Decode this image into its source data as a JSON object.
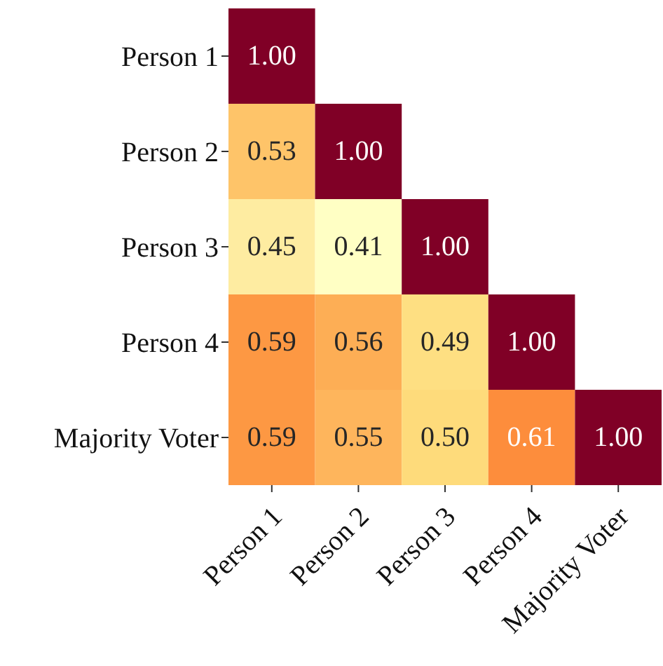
{
  "chart_data": {
    "type": "heatmap",
    "categories": [
      "Person 1",
      "Person 2",
      "Person 3",
      "Person 4",
      "Majority Voter"
    ],
    "y_categories": [
      "Person 1",
      "Person 2",
      "Person 3",
      "Person 4",
      "Majority Voter"
    ],
    "cells": [
      [
        1.0,
        null,
        null,
        null,
        null
      ],
      [
        0.53,
        1.0,
        null,
        null,
        null
      ],
      [
        0.45,
        0.41,
        1.0,
        null,
        null
      ],
      [
        0.59,
        0.56,
        0.49,
        1.0,
        null
      ],
      [
        0.59,
        0.55,
        0.5,
        0.61,
        1.0
      ]
    ],
    "cell_labels": [
      [
        "1.00",
        null,
        null,
        null,
        null
      ],
      [
        "0.53",
        "1.00",
        null,
        null,
        null
      ],
      [
        "0.45",
        "0.41",
        "1.00",
        null,
        null
      ],
      [
        "0.59",
        "0.56",
        "0.49",
        "1.00",
        null
      ],
      [
        "0.59",
        "0.55",
        "0.50",
        "0.61",
        "1.00"
      ]
    ],
    "data_labels": true
  }
}
